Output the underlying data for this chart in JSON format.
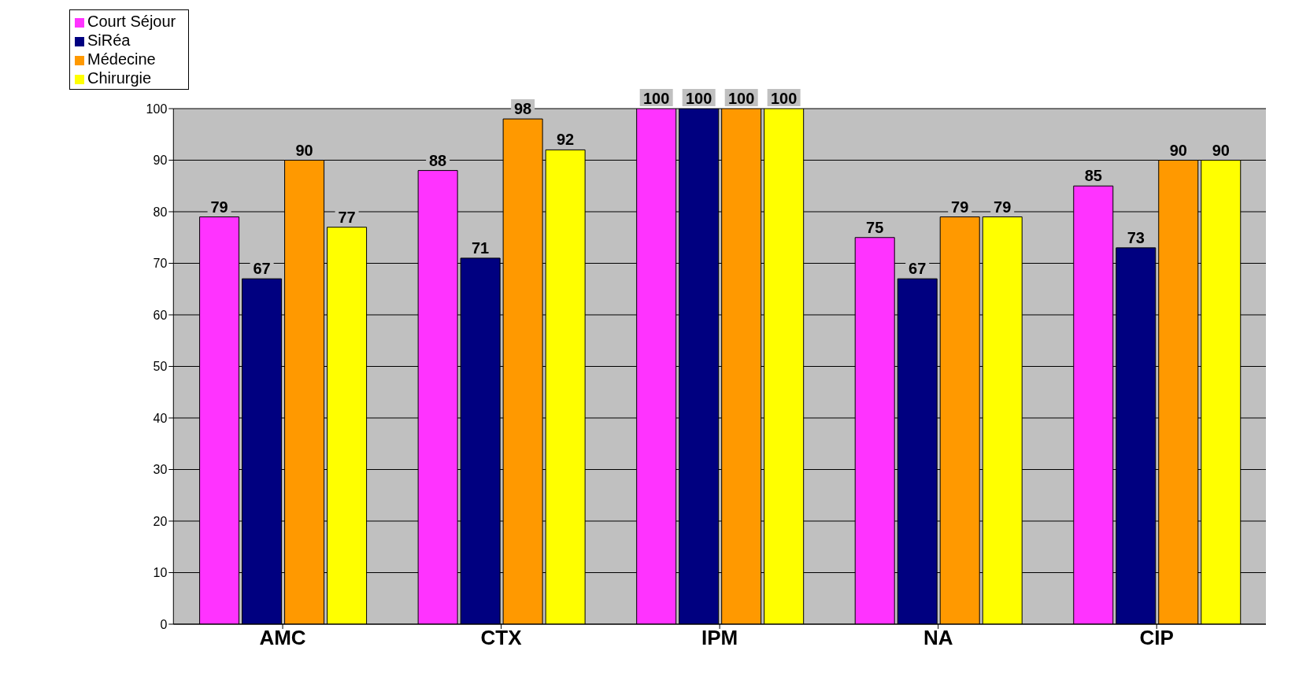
{
  "chart_data": {
    "type": "bar",
    "categories": [
      "AMC",
      "CTX",
      "IPM",
      "NA",
      "CIP"
    ],
    "series": [
      {
        "name": "Court Séjour",
        "color": "#ff33ff",
        "values": [
          79,
          88,
          100,
          75,
          85
        ]
      },
      {
        "name": "SiRéa",
        "color": "#000080",
        "values": [
          67,
          71,
          100,
          67,
          73
        ]
      },
      {
        "name": "Médecine",
        "color": "#ff9900",
        "values": [
          90,
          98,
          100,
          79,
          90
        ]
      },
      {
        "name": "Chirurgie",
        "color": "#ffff00",
        "values": [
          77,
          92,
          100,
          79,
          90
        ]
      }
    ],
    "ylim": [
      0,
      100
    ],
    "yticks": [
      0,
      10,
      20,
      30,
      40,
      50,
      60,
      70,
      80,
      90,
      100
    ],
    "grid": "y",
    "legend": "top left",
    "data_labels": true
  }
}
